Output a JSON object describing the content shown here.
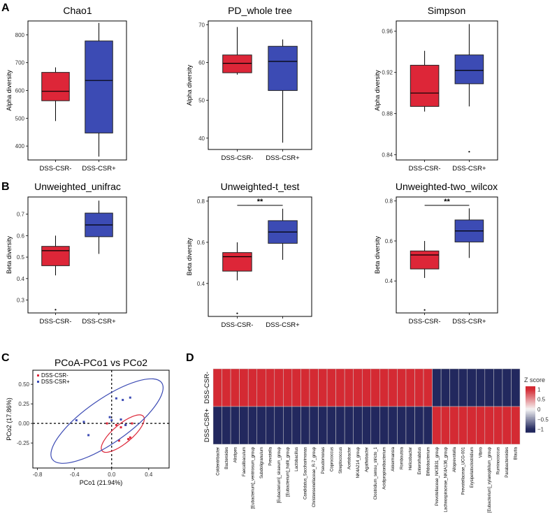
{
  "panel_letters": {
    "A": "A",
    "B": "B",
    "C": "C",
    "D": "D"
  },
  "colors": {
    "group_neg": "#dd2638",
    "group_pos": "#3c4bb4",
    "heat_high": "#d42a33",
    "heat_low": "#22285e",
    "heat_mid": "#f5f5f5"
  },
  "chart_data": [
    {
      "type": "box",
      "id": "chao1",
      "title": "Chao1",
      "ylabel": "Alpha diversity",
      "ylim": [
        350,
        850
      ],
      "yticks": [
        400,
        500,
        600,
        700,
        800
      ],
      "categories": [
        "DSS-CSR-",
        "DSS-CSR+"
      ],
      "boxes": [
        {
          "group": "DSS-CSR-",
          "whisker_low": 490,
          "q1": 563,
          "median": 597,
          "q3": 665,
          "whisker_high": 683,
          "outliers": []
        },
        {
          "group": "DSS-CSR+",
          "whisker_low": 362,
          "q1": 447,
          "median": 636,
          "q3": 778,
          "whisker_high": 843,
          "outliers": []
        }
      ]
    },
    {
      "type": "box",
      "id": "pd",
      "title": "PD_whole tree",
      "ylabel": "Alpha diversity",
      "ylim": [
        37,
        71
      ],
      "yticks": [
        40,
        50,
        60,
        70
      ],
      "categories": [
        "DSS-CSR-",
        "DSS-CSR+"
      ],
      "boxes": [
        {
          "group": "DSS-CSR-",
          "whisker_low": 56.8,
          "q1": 57.3,
          "median": 59.8,
          "q3": 62.0,
          "whisker_high": 69.4,
          "outliers": []
        },
        {
          "group": "DSS-CSR+",
          "whisker_low": 38.8,
          "q1": 52.6,
          "median": 60.3,
          "q3": 64.3,
          "whisker_high": 66.1,
          "outliers": []
        }
      ]
    },
    {
      "type": "box",
      "id": "simpson",
      "title": "Simpson",
      "ylabel": "Alpha diversity",
      "ylim": [
        0.835,
        0.97
      ],
      "yticks": [
        0.84,
        0.88,
        0.92,
        0.96
      ],
      "categories": [
        "DSS-CSR-",
        "DSS-CSR+"
      ],
      "boxes": [
        {
          "group": "DSS-CSR-",
          "whisker_low": 0.882,
          "q1": 0.887,
          "median": 0.9,
          "q3": 0.927,
          "whisker_high": 0.941,
          "outliers": []
        },
        {
          "group": "DSS-CSR+",
          "whisker_low": 0.887,
          "q1": 0.909,
          "median": 0.922,
          "q3": 0.937,
          "whisker_high": 0.967,
          "outliers": [
            0.843
          ]
        }
      ]
    },
    {
      "type": "box",
      "id": "unifrac",
      "title": "Unweighted_unifrac",
      "ylabel": "Beta diversity",
      "ylim": [
        0.24,
        0.78
      ],
      "yticks": [
        0.3,
        0.4,
        0.5,
        0.6,
        0.7
      ],
      "categories": [
        "DSS-CSR-",
        "DSS-CSR+"
      ],
      "boxes": [
        {
          "group": "DSS-CSR-",
          "whisker_low": 0.415,
          "q1": 0.46,
          "median": 0.53,
          "q3": 0.55,
          "whisker_high": 0.6,
          "outliers": [
            0.255
          ]
        },
        {
          "group": "DSS-CSR+",
          "whisker_low": 0.515,
          "q1": 0.595,
          "median": 0.65,
          "q3": 0.705,
          "whisker_high": 0.763,
          "outliers": []
        }
      ]
    },
    {
      "type": "box",
      "id": "ttest",
      "title": "Unweighted-t_test",
      "ylabel": "Beta diversity",
      "ylim": [
        0.24,
        0.82
      ],
      "yticks": [
        0.4,
        0.6,
        0.8
      ],
      "categories": [
        "DSS-CSR-",
        "DSS-CSR+"
      ],
      "significance": "**",
      "boxes": [
        {
          "group": "DSS-CSR-",
          "whisker_low": 0.415,
          "q1": 0.46,
          "median": 0.53,
          "q3": 0.55,
          "whisker_high": 0.6,
          "outliers": [
            0.255
          ]
        },
        {
          "group": "DSS-CSR+",
          "whisker_low": 0.515,
          "q1": 0.595,
          "median": 0.65,
          "q3": 0.705,
          "whisker_high": 0.763,
          "outliers": []
        }
      ]
    },
    {
      "type": "box",
      "id": "wilcox",
      "title": "Unweighted-two_wilcox",
      "ylabel": "Beta diversity",
      "ylim": [
        0.24,
        0.82
      ],
      "yticks": [
        0.4,
        0.6,
        0.8
      ],
      "categories": [
        "DSS-CSR-",
        "DSS-CSR+"
      ],
      "significance": "**",
      "boxes": [
        {
          "group": "DSS-CSR-",
          "whisker_low": 0.415,
          "q1": 0.46,
          "median": 0.53,
          "q3": 0.55,
          "whisker_high": 0.6,
          "outliers": [
            0.255
          ]
        },
        {
          "group": "DSS-CSR+",
          "whisker_low": 0.515,
          "q1": 0.595,
          "median": 0.65,
          "q3": 0.705,
          "whisker_high": 0.763,
          "outliers": []
        }
      ]
    },
    {
      "type": "scatter",
      "id": "pcoa",
      "title": "PCoA-PCo1 vs PCo2",
      "xlabel": "PCo1 (21.94%)",
      "ylabel": "PCo2 (17.86%)",
      "xlim": [
        -0.85,
        0.62
      ],
      "ylim": [
        -0.57,
        0.68
      ],
      "xticks": [
        -0.8,
        -0.4,
        0.0,
        0.4
      ],
      "yticks": [
        -0.25,
        0.0,
        0.25,
        0.5
      ],
      "legend": [
        "DSS-CSR-",
        "DSS-CSR+"
      ],
      "series": [
        {
          "name": "DSS-CSR-",
          "points": [
            [
              -0.05,
              0.0
            ],
            [
              0.05,
              -0.02
            ],
            [
              0.1,
              -0.05
            ],
            [
              0.15,
              -0.02
            ],
            [
              0.08,
              -0.22
            ],
            [
              0.2,
              -0.18
            ],
            [
              0.18,
              -0.2
            ],
            [
              0.22,
              0.0
            ]
          ],
          "ellipse": {
            "cx": 0.12,
            "cy": -0.13,
            "rx": 0.29,
            "ry": 0.12,
            "angle_deg": -40
          }
        },
        {
          "name": "DSS-CSR+",
          "points": [
            [
              -0.38,
              0.04
            ],
            [
              -0.3,
              0.02
            ],
            [
              -0.25,
              -0.15
            ],
            [
              -0.02,
              0.08
            ],
            [
              0.05,
              0.32
            ],
            [
              0.12,
              0.3
            ],
            [
              0.2,
              0.33
            ],
            [
              0.15,
              -0.02
            ],
            [
              0.1,
              0.05
            ],
            [
              0.0,
              0.04
            ]
          ],
          "ellipse": {
            "cx": -0.05,
            "cy": 0.03,
            "rx": 0.72,
            "ry": 0.28,
            "angle_deg": -35
          }
        }
      ]
    },
    {
      "type": "heatmap",
      "id": "heatmap",
      "rows": [
        "DSS-CSR-",
        "DSS-CSR+"
      ],
      "columns": [
        "Coldentribacter",
        "Bacteroides",
        "Alistipes",
        "Faecalibaculum",
        "[Eubacterium]_ventriosum_group",
        "Subdoligranulum",
        "Prevotella",
        "[Eubacterium]_siraeum_group",
        "[Eubacterium]_hallii_group",
        "Lactobacillus",
        "Candidatus_Saccharimonas",
        "Christensenellaceae_R-7_group",
        "Pseudomonas",
        "Coprococcus",
        "Streptococcus",
        "Acetobacter",
        "NK4A214_group",
        "Agathobacter",
        "Clostridium_sensu_stricto_1",
        "Acidipropionibacterium",
        "Akkermansia",
        "Romboutsia",
        "Helicobacter",
        "Enterorhabdus",
        "Bifidobacterium",
        "Prevotellaceae_NK3B31_group",
        "Lachnospiraceae_NK4A136_group",
        "Alloprevotella",
        "Prevotellaceae_UCG-001",
        "Erysipelatoclostridium",
        "Vibrio",
        "[Eubacterium]_xylanophilum_group",
        "Ruminococcus",
        "Parabacteroides",
        "Blautia"
      ],
      "values": [
        [
          1,
          1,
          1,
          1,
          1,
          1,
          1,
          1,
          1,
          1,
          1,
          1,
          1,
          1,
          1,
          1,
          1,
          1,
          1,
          1,
          1,
          1,
          1,
          1,
          1,
          -1,
          -1,
          -1,
          -1,
          -1,
          -1,
          -1,
          -1,
          -1,
          -1
        ],
        [
          -1,
          -1,
          -1,
          -1,
          -1,
          -1,
          -1,
          -1,
          -1,
          -1,
          -1,
          -1,
          -1,
          -1,
          -1,
          -1,
          -1,
          -1,
          -1,
          -1,
          -1,
          -1,
          -1,
          -1,
          -1,
          1,
          1,
          1,
          1,
          1,
          1,
          1,
          1,
          1,
          1
        ]
      ],
      "colorbar": {
        "title": "Z score",
        "ticks": [
          1,
          0.5,
          0,
          -0.5,
          -1
        ],
        "tick_labels": [
          "1",
          "0.5",
          "0",
          "−0.5",
          "−1"
        ],
        "range": [
          -1.15,
          1.15
        ]
      }
    }
  ]
}
